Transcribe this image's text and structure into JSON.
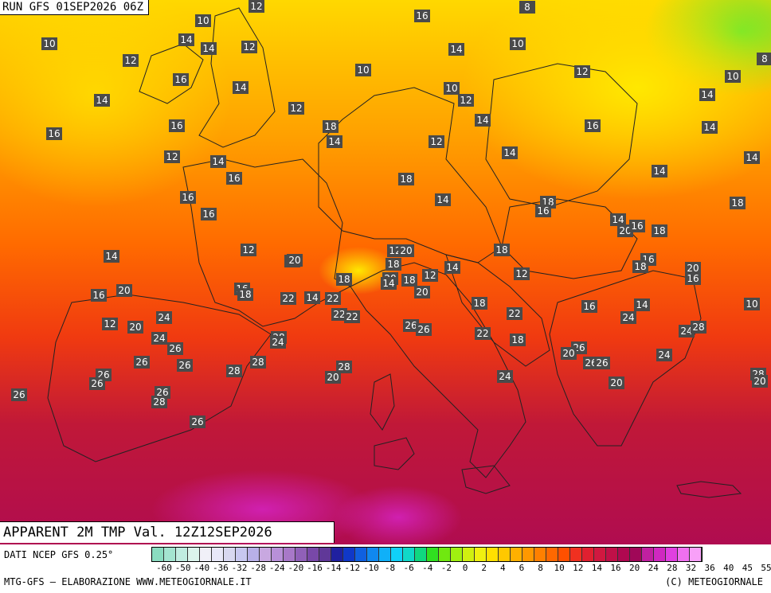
{
  "header": {
    "run_label": "RUN GFS 01SEP2026 06Z"
  },
  "map": {
    "field_title": "APPARENT 2M TMP Val. 12Z12SEP2026",
    "value_labels": [
      "10",
      "12",
      "16",
      "8",
      "14",
      "14",
      "12",
      "14",
      "10",
      "12",
      "16",
      "14",
      "10",
      "10",
      "12",
      "14",
      "10",
      "8",
      "14",
      "12",
      "10",
      "12",
      "14",
      "16",
      "14",
      "16",
      "16",
      "18",
      "14",
      "12",
      "14",
      "12",
      "14",
      "16",
      "14",
      "14",
      "16",
      "16",
      "18",
      "14",
      "18",
      "16",
      "18",
      "14",
      "20",
      "16",
      "18",
      "14",
      "12",
      "16",
      "20",
      "12",
      "20",
      "18",
      "18",
      "14",
      "16",
      "18",
      "20",
      "16",
      "12",
      "18",
      "20",
      "14",
      "18",
      "12",
      "16",
      "18",
      "22",
      "14",
      "22",
      "20",
      "16",
      "20",
      "18",
      "16",
      "14",
      "10",
      "12",
      "20",
      "24",
      "24",
      "26",
      "22",
      "22",
      "24",
      "22",
      "28",
      "24",
      "26",
      "26",
      "22",
      "18",
      "24",
      "28",
      "26",
      "20",
      "26",
      "26",
      "24",
      "26",
      "26",
      "28",
      "28",
      "28",
      "20",
      "26",
      "26",
      "24",
      "20",
      "28",
      "20",
      "26",
      "26",
      "28",
      "26"
    ]
  },
  "legend": {
    "colors": [
      "#8adcc0",
      "#a4e4d0",
      "#c0ece0",
      "#dcf4ec",
      "#f0f0f8",
      "#e8e8f8",
      "#d8d8f0",
      "#c8c8f0",
      "#b8b0e8",
      "#c8a8e0",
      "#b890d8",
      "#a878c8",
      "#9060b8",
      "#7848a8",
      "#603898",
      "#2020a0",
      "#1038c8",
      "#1060e0",
      "#1088f0",
      "#10b0f8",
      "#10d0f8",
      "#10d8c8",
      "#10d880",
      "#30e020",
      "#70e810",
      "#a0f010",
      "#d0f010",
      "#f0f010",
      "#ffe000",
      "#ffc800",
      "#ffb000",
      "#ff9800",
      "#ff8000",
      "#ff6800",
      "#ff5000",
      "#f03020",
      "#e02030",
      "#d01840",
      "#c01048",
      "#b00850",
      "#a00858",
      "#c020a0",
      "#d028c0",
      "#e040e0",
      "#f070f0",
      "#f8a0f8"
    ],
    "tick_labels": [
      "-60",
      "-50",
      "-40",
      "-36",
      "-32",
      "-28",
      "-24",
      "-20",
      "-16",
      "-14",
      "-12",
      "-10",
      "-8",
      "-6",
      "-4",
      "-2",
      "0",
      "2",
      "4",
      "6",
      "8",
      "10",
      "12",
      "14",
      "16",
      "20",
      "24",
      "28",
      "32",
      "36",
      "40",
      "45",
      "55"
    ]
  },
  "footer": {
    "source_note": "DATI NCEP GFS 0.25°",
    "credit_left": "MTG-GFS — ELABORAZIONE WWW.METEOGIORNALE.IT",
    "credit_right": "(C) METEOGIORNALE"
  }
}
